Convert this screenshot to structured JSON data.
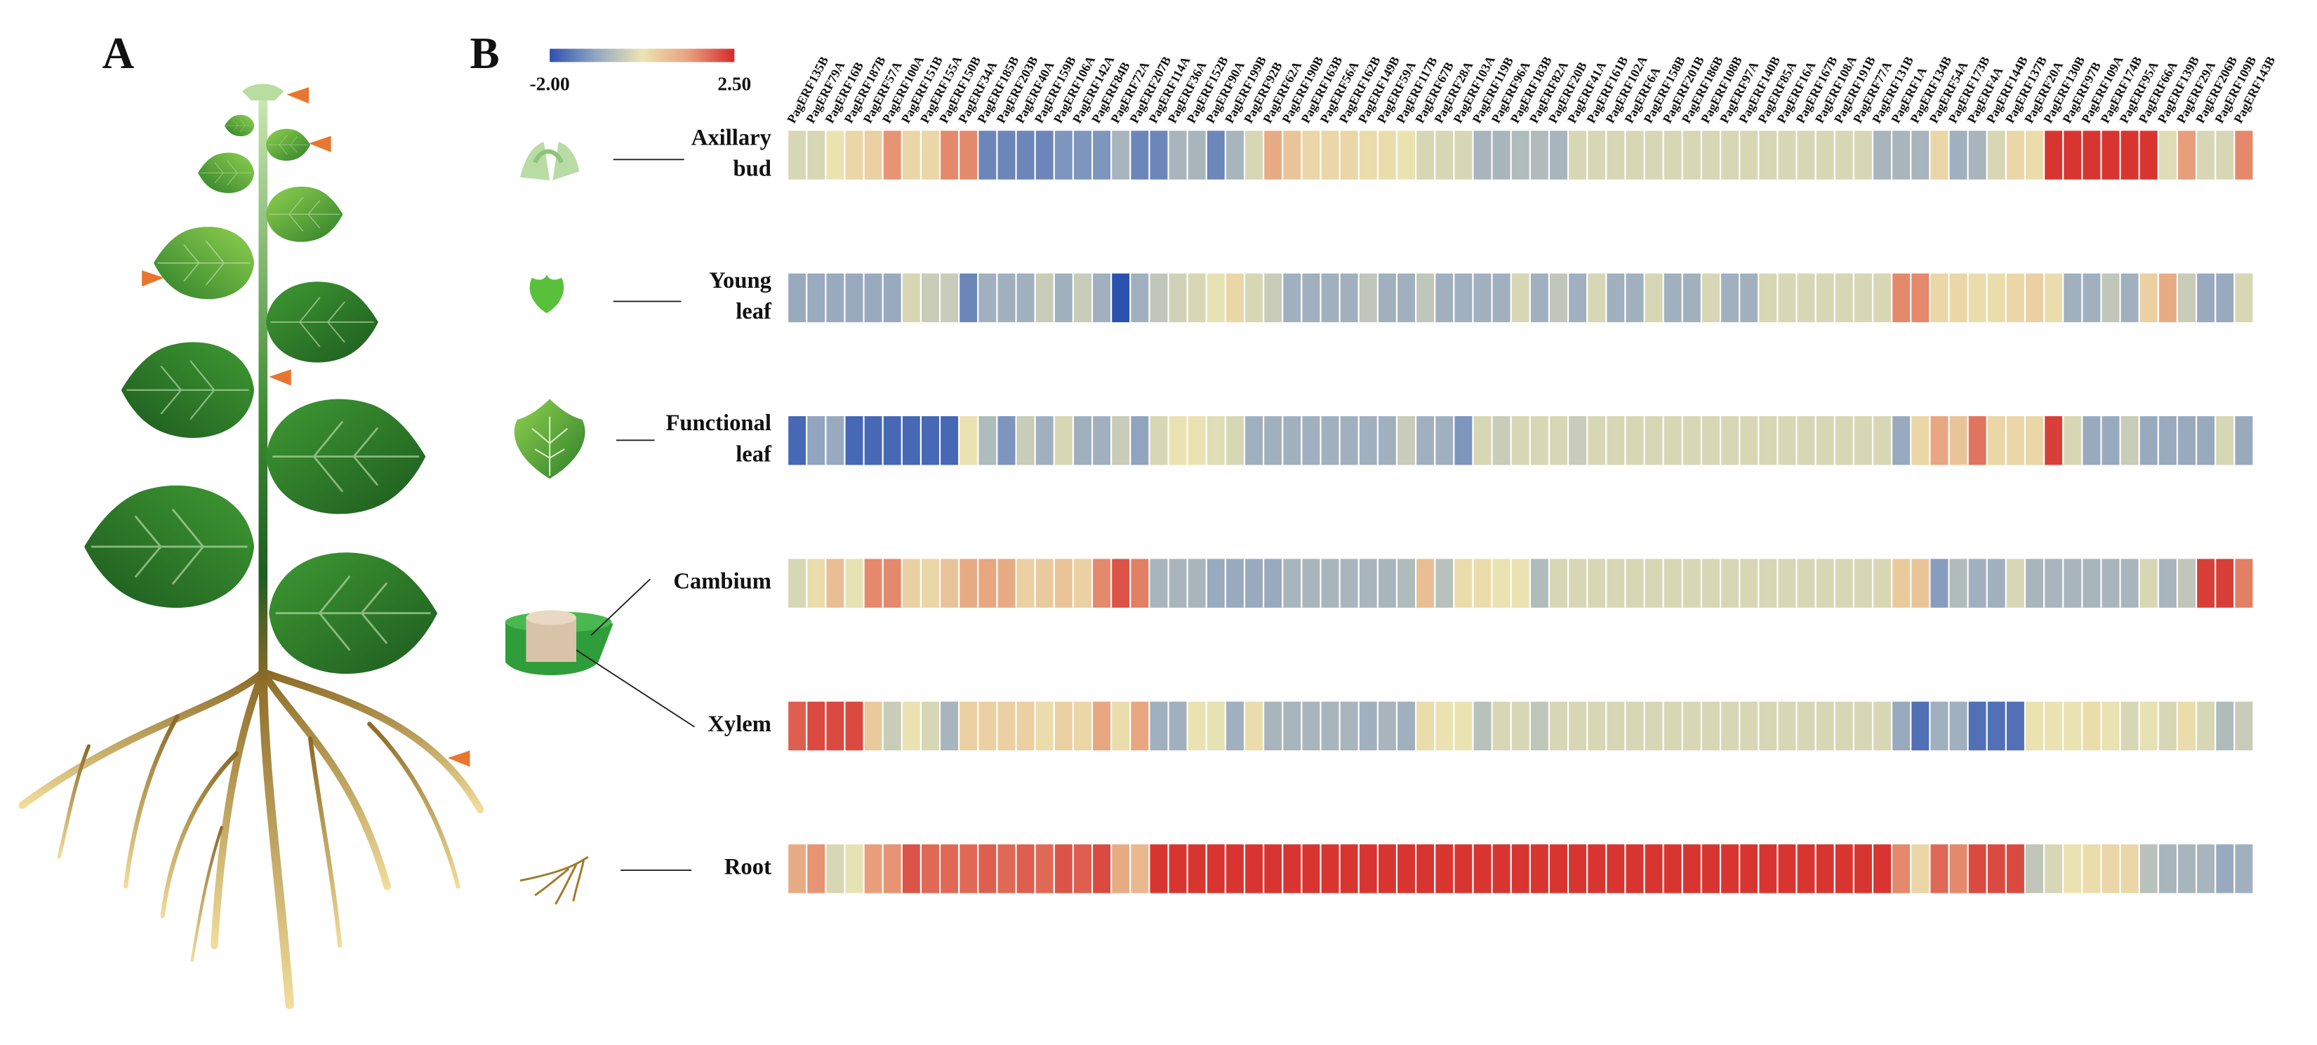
{
  "chart_data": {
    "type": "heatmap",
    "panel_labels": [
      "A",
      "B"
    ],
    "categories": [
      "PagERF135B",
      "PagERF79A",
      "PagERF16B",
      "PagERF187B",
      "PagERF57A",
      "PagERF100A",
      "PagERF151B",
      "PagERF155A",
      "PagERF150B",
      "PagERF34A",
      "PagERF185B",
      "PagERF203B",
      "PagERF40A",
      "PagERF159B",
      "PagERF106A",
      "PagERF142A",
      "PagERF84B",
      "PagERF72A",
      "PagERF207B",
      "PagERF114A",
      "PagERF36A",
      "PagERF152B",
      "PagERF90A",
      "PagERF199B",
      "PagERF92B",
      "PagERF62A",
      "PagERF190B",
      "PagERF163B",
      "PagERF56A",
      "PagERF162B",
      "PagERF149B",
      "PagERF59A",
      "PagERF117B",
      "PagERF67B",
      "PagERF28A",
      "PagERF103A",
      "PagERF119B",
      "PagERF96A",
      "PagERF183B",
      "PagERF82A",
      "PagERF20B",
      "PagERF41A",
      "PagERF161B",
      "PagERF102A",
      "PagERF6A",
      "PagERF158B",
      "PagERF201B",
      "PagERF186B",
      "PagERF108B",
      "PagERF97A",
      "PagERF140B",
      "PagERF85A",
      "PagERF16A",
      "PagERF167B",
      "PagERF108A",
      "PagERF191B",
      "PagERF77A",
      "PagERF131B",
      "PagERF1A",
      "PagERF134B",
      "PagERF54A",
      "PagERF173B",
      "PagERF4A",
      "PagERF144B",
      "PagERF137B",
      "PagERF20A",
      "PagERF130B",
      "PagERF97B",
      "PagERF109A",
      "PagERF174B",
      "PagERF95A",
      "PagERF66A",
      "PagERF139B",
      "PagERF29A",
      "PagERF206B",
      "PagERF109B",
      "PagERF143B"
    ],
    "series": [
      {
        "label_lines": [
          "Axillary",
          "bud"
        ],
        "values": [
          0,
          0,
          0.3,
          0.5,
          0.6,
          1.5,
          0.5,
          0.5,
          1.6,
          1.6,
          -1.3,
          -1.3,
          -1.3,
          -1.3,
          -1.1,
          -1.1,
          -1.1,
          -0.6,
          -1.3,
          -1.3,
          -0.6,
          -0.6,
          -1.3,
          -0.6,
          0,
          1.2,
          0.8,
          0.5,
          0.5,
          0.5,
          0.4,
          0.4,
          0.3,
          0,
          0,
          0,
          -0.6,
          -0.6,
          -0.5,
          -0.5,
          -0.6,
          0,
          0,
          0,
          0,
          0,
          0,
          0,
          0,
          0,
          0,
          0,
          0,
          0,
          0,
          0,
          0,
          -0.6,
          -0.6,
          -0.6,
          0.5,
          -0.7,
          -0.6,
          0,
          0.5,
          0.4,
          2.4,
          2.4,
          2.4,
          2.4,
          2.4,
          2.4,
          0.1,
          1.4,
          0,
          0,
          1.6
        ]
      },
      {
        "label_lines": [
          "Young",
          "leaf"
        ],
        "values": [
          -0.8,
          -0.8,
          -0.8,
          -0.8,
          -0.8,
          -0.8,
          0,
          -0.2,
          -0.2,
          -1.3,
          -0.7,
          -0.7,
          -0.7,
          -0.2,
          -0.7,
          -0.2,
          -0.7,
          -2,
          -0.7,
          -0.3,
          -0.1,
          0,
          0.2,
          0.5,
          0,
          -0.2,
          -0.7,
          -0.7,
          -0.7,
          -0.7,
          -0.3,
          -0.7,
          -0.7,
          -0.3,
          -0.7,
          -0.7,
          -0.7,
          -0.7,
          0,
          -0.7,
          -0.3,
          -0.7,
          0,
          -0.7,
          -0.7,
          0,
          -0.7,
          -0.7,
          0,
          -0.7,
          -0.7,
          0,
          0,
          0,
          0,
          0,
          0,
          0,
          1.6,
          1.6,
          0.5,
          0.5,
          0.4,
          0.4,
          0.5,
          0.6,
          0.4,
          -0.7,
          -0.7,
          -0.3,
          -0.7,
          0.6,
          1.2,
          -0.2,
          -0.8,
          -0.8,
          0
        ]
      },
      {
        "label_lines": [
          "Functional",
          "leaf"
        ],
        "values": [
          -1.7,
          -0.9,
          -0.8,
          -1.7,
          -1.7,
          -1.7,
          -1.7,
          -1.7,
          -1.7,
          0.3,
          -0.5,
          -1.1,
          -0.2,
          -0.7,
          0,
          -0.7,
          -0.7,
          -0.2,
          -0.9,
          0,
          0.3,
          0.3,
          0.1,
          0,
          -0.7,
          -0.7,
          -0.7,
          -0.7,
          -0.7,
          -0.7,
          -0.7,
          -0.7,
          -0.2,
          -0.7,
          -0.7,
          -1.1,
          0,
          -0.2,
          0,
          0,
          0,
          -0.2,
          0,
          0,
          0,
          0,
          0,
          0,
          0,
          0,
          0,
          0,
          0,
          0,
          0,
          0,
          0,
          0,
          -0.8,
          0.5,
          1.3,
          0.8,
          1.8,
          0.5,
          0.5,
          0.5,
          2.3,
          0,
          -0.8,
          -0.8,
          -0.2,
          -0.8,
          -0.8,
          -0.8,
          -0.8,
          0,
          -0.8
        ]
      },
      {
        "label_lines": [
          "Cambium"
        ],
        "values": [
          0,
          0.4,
          0.9,
          0.2,
          1.6,
          1.6,
          0.6,
          0.5,
          0.8,
          1.2,
          1.3,
          1.2,
          0.6,
          0.7,
          0.8,
          0.6,
          1.6,
          2.1,
          1.7,
          -0.6,
          -0.6,
          -0.6,
          -0.8,
          -0.8,
          -0.8,
          -0.8,
          -0.6,
          -0.6,
          -0.6,
          -0.6,
          -0.6,
          -0.6,
          -0.5,
          0.9,
          -0.4,
          0.4,
          0.4,
          0.3,
          0.3,
          -0.5,
          0,
          0,
          0,
          0,
          0,
          0,
          0,
          0,
          0,
          0,
          0,
          0,
          0,
          0,
          0,
          0,
          0,
          0,
          0.7,
          0.8,
          -1,
          -0.5,
          -0.7,
          -0.7,
          0,
          -0.6,
          -0.6,
          -0.6,
          -0.6,
          -0.6,
          -0.6,
          0,
          -0.6,
          -0.3,
          2.3,
          2.3,
          1.7
        ]
      },
      {
        "label_lines": [
          "Xylem"
        ],
        "values": [
          2,
          2.2,
          2.2,
          2.2,
          0.7,
          -0.2,
          0.3,
          0,
          -0.6,
          0.6,
          0.6,
          0.6,
          0.6,
          0.4,
          0.6,
          0.5,
          1.3,
          0.4,
          1.3,
          -0.7,
          -0.7,
          0.3,
          0.2,
          -0.7,
          0.4,
          -0.6,
          -0.6,
          -0.6,
          -0.6,
          -0.6,
          -0.7,
          -0.6,
          -0.7,
          0.4,
          0.3,
          0.3,
          -0.4,
          0,
          0,
          -0.3,
          0,
          0,
          0,
          0,
          0,
          0,
          0,
          0,
          0,
          0,
          0,
          0,
          0,
          0,
          0,
          0,
          0,
          0,
          -0.8,
          -1.6,
          -0.7,
          -0.7,
          -1.6,
          -1.6,
          -1.6,
          0.3,
          0.3,
          0.3,
          0.4,
          0.3,
          0,
          0.2,
          0,
          0.4,
          0,
          -0.5,
          -0.2
        ]
      },
      {
        "label_lines": [
          "Root"
        ],
        "values": [
          1.2,
          1.5,
          0,
          0.2,
          1.4,
          1.5,
          2.1,
          1.9,
          1.9,
          1.9,
          2,
          1.9,
          2,
          1.9,
          2.1,
          2,
          2.2,
          1.2,
          1,
          2.4,
          2.4,
          2.4,
          2.4,
          2.4,
          2.4,
          2.4,
          2.4,
          2.4,
          2.4,
          2.4,
          2.4,
          2.4,
          2.4,
          2.4,
          2.4,
          2.4,
          2.4,
          2.4,
          2.4,
          2.4,
          2.4,
          2.4,
          2.4,
          2.4,
          2.4,
          2.4,
          2.4,
          2.4,
          2.4,
          2.4,
          2.4,
          2.4,
          2.4,
          2.4,
          2.4,
          2.4,
          2.4,
          2.4,
          1.6,
          0.5,
          1.9,
          1.6,
          2.2,
          2.2,
          2.2,
          -0.3,
          0,
          0.3,
          0.4,
          0.5,
          0.5,
          -0.4,
          -0.6,
          -0.6,
          -0.6,
          -0.8,
          -0.7
        ]
      }
    ],
    "zlim": [
      -2,
      2.5
    ],
    "zticks": [
      {
        "value": -2,
        "label": "-2.00"
      },
      {
        "value": 2.5,
        "label": "2.50"
      }
    ],
    "colors": [
      "#2c52b0",
      "#93a6c0",
      "#ebe5b3",
      "#e8a17d",
      "#d62a2a"
    ]
  }
}
